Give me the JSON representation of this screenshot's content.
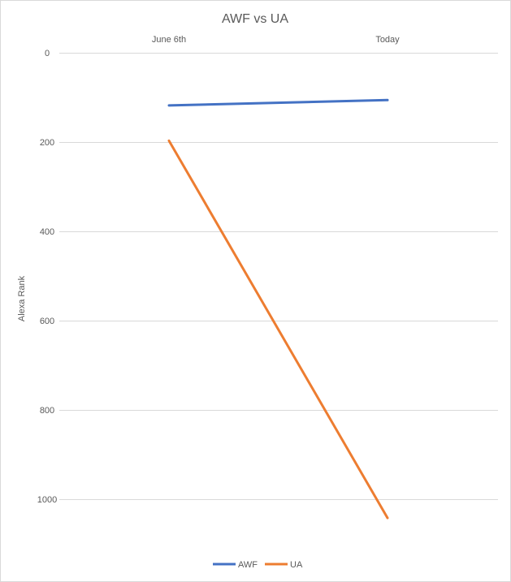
{
  "chart_data": {
    "type": "line",
    "title": "AWF vs UA",
    "xlabel": "",
    "ylabel": "Alexa Rank",
    "categories": [
      "June 6th",
      "Today"
    ],
    "x_axis_position": "top",
    "y_reversed": true,
    "ylim": [
      0,
      1100
    ],
    "yticks": [
      0,
      200,
      400,
      600,
      800,
      1000
    ],
    "grid": true,
    "legend_position": "bottom",
    "series": [
      {
        "name": "AWF",
        "color": "#4472C4",
        "values": [
          118,
          106
        ]
      },
      {
        "name": "UA",
        "color": "#ED7D31",
        "values": [
          197,
          1042
        ]
      }
    ]
  }
}
